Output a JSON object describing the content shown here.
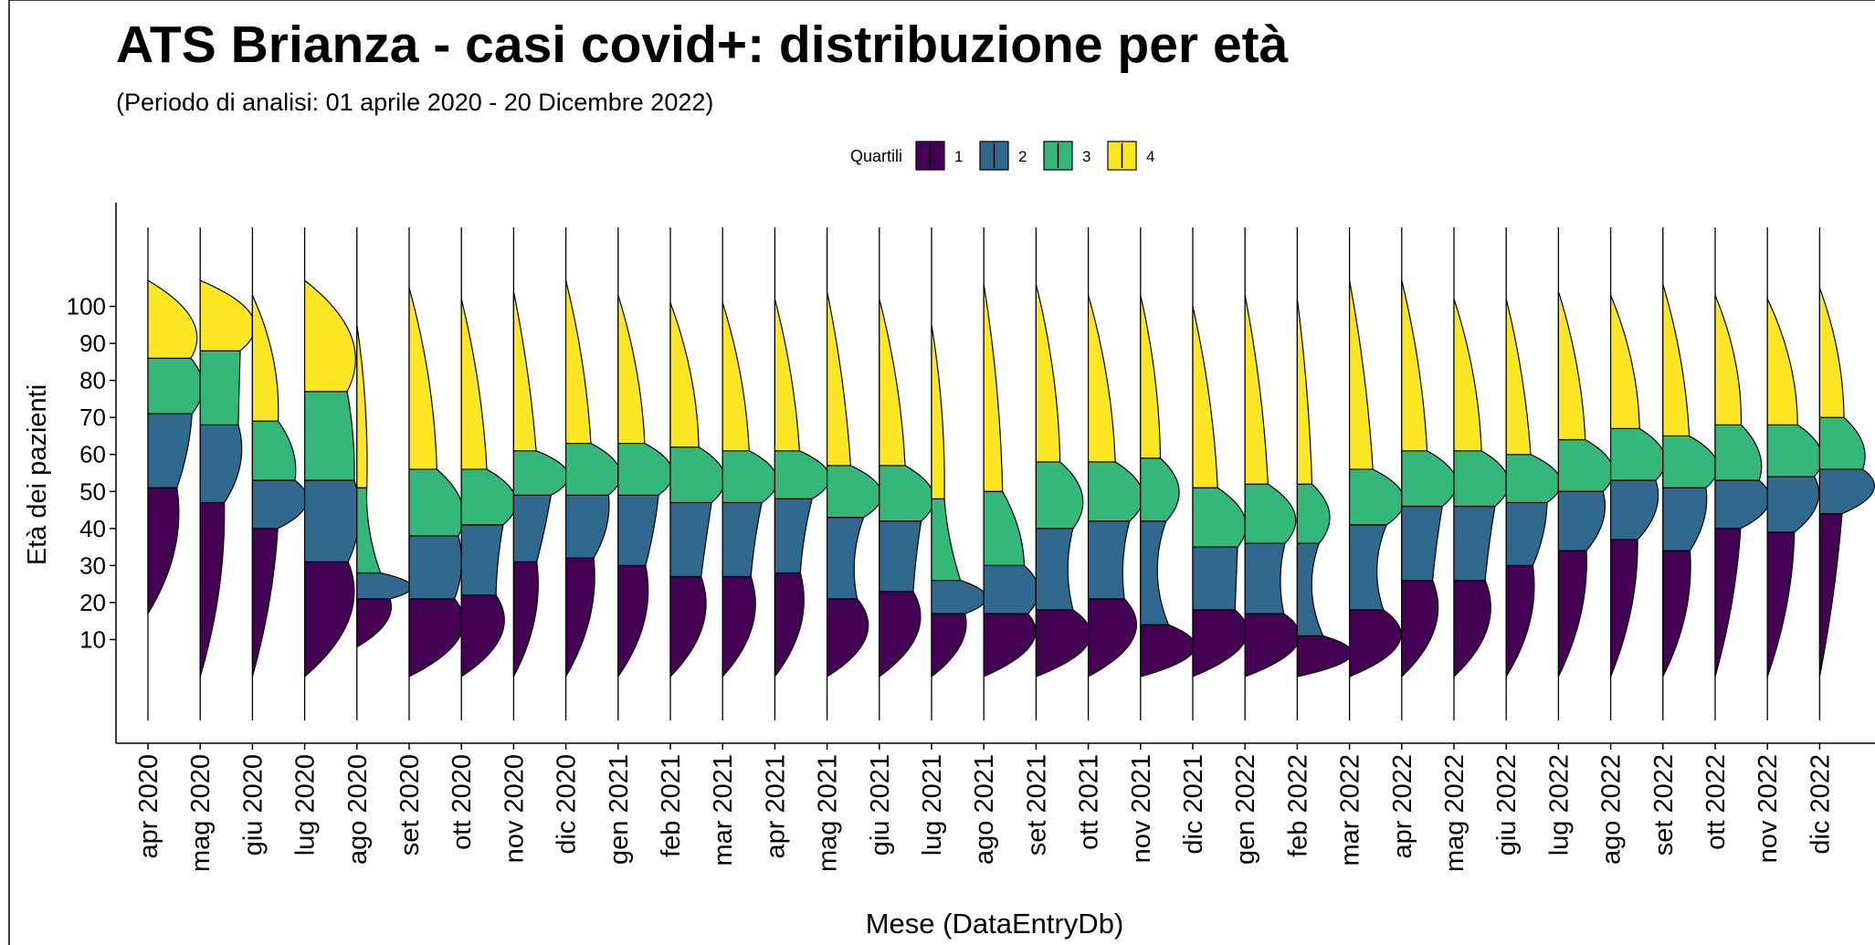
{
  "chart_data": {
    "type": "ridge",
    "title": "ATS Brianza - casi covid+: distribuzione per età",
    "subtitle": "(Periodo di analisi: 01 aprile 2020 - 20 Dicembre 2022)",
    "x_label": "Mese (DataEntryDb)",
    "y_label": "Età dei pazienti",
    "legend_title": "Quartili",
    "categories": [
      "apr 2020",
      "mag 2020",
      "giu 2020",
      "lug 2020",
      "ago 2020",
      "set 2020",
      "ott 2020",
      "nov 2020",
      "dic 2020",
      "gen 2021",
      "feb 2021",
      "mar 2021",
      "apr 2021",
      "mag 2021",
      "giu 2021",
      "lug 2021",
      "ago 2021",
      "set 2021",
      "ott 2021",
      "nov 2021",
      "dic 2021",
      "gen 2022",
      "feb 2022",
      "mar 2022",
      "apr 2022",
      "mag 2022",
      "giu 2022",
      "lug 2022",
      "ago 2022",
      "set 2022",
      "ott 2022",
      "nov 2022",
      "dic 2022"
    ],
    "lower_bounds": [
      17,
      0,
      0,
      0,
      8,
      0,
      0,
      0,
      0,
      0,
      0,
      0,
      0,
      0,
      0,
      0,
      0,
      0,
      0,
      0,
      0,
      0,
      0,
      0,
      0,
      0,
      0,
      0,
      0,
      0,
      0,
      0,
      0
    ],
    "series": [
      {
        "name": "1",
        "color": "#440154",
        "values": [
          51,
          47,
          40,
          31,
          21,
          21,
          22,
          31,
          32,
          30,
          27,
          27,
          28,
          21,
          23,
          17,
          17,
          18,
          21,
          14,
          18,
          17,
          11,
          18,
          26,
          26,
          30,
          34,
          37,
          34,
          40,
          39,
          44
        ]
      },
      {
        "name": "2",
        "color": "#31688E",
        "values": [
          71,
          68,
          53,
          53,
          28,
          38,
          41,
          49,
          49,
          49,
          47,
          47,
          48,
          43,
          42,
          26,
          30,
          40,
          42,
          42,
          35,
          36,
          36,
          41,
          46,
          46,
          47,
          50,
          53,
          51,
          53,
          54,
          56
        ]
      },
      {
        "name": "3",
        "color": "#35B779",
        "values": [
          86,
          88,
          69,
          77,
          51,
          56,
          56,
          61,
          63,
          63,
          62,
          61,
          61,
          57,
          57,
          48,
          50,
          58,
          58,
          59,
          51,
          52,
          52,
          56,
          61,
          61,
          60,
          64,
          67,
          65,
          68,
          68,
          70
        ]
      },
      {
        "name": "4",
        "color": "#FDE725",
        "values": [
          107,
          107,
          103,
          107,
          95,
          105,
          102,
          104,
          107,
          103,
          101,
          101,
          102,
          104,
          102,
          95,
          106,
          106,
          103,
          103,
          100,
          103,
          102,
          107,
          107,
          102,
          102,
          104,
          103,
          106,
          103,
          102,
          105
        ]
      }
    ],
    "ylim": [
      -18,
      128
    ],
    "yticks": [
      10,
      20,
      30,
      40,
      50,
      60,
      70,
      80,
      90,
      100
    ]
  }
}
